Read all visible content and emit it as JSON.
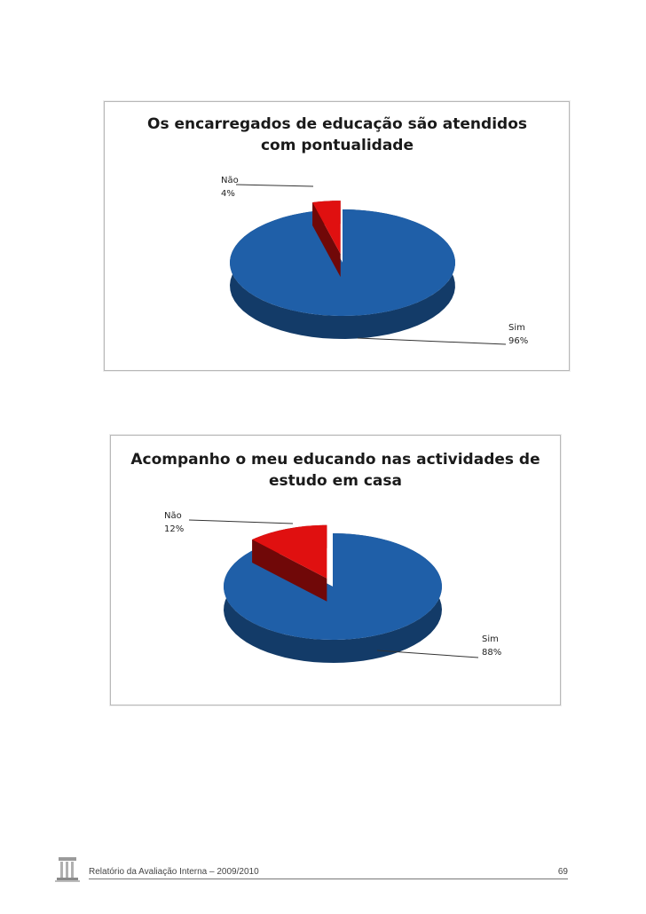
{
  "chart_data": [
    {
      "type": "pie",
      "title_lines": [
        "Os encarregados de educação são atendidos",
        "com pontualidade"
      ],
      "slices": [
        {
          "label": "Não",
          "percent_label": "4%",
          "value": 4
        },
        {
          "label": "Sim",
          "percent_label": "96%",
          "value": 96
        }
      ],
      "colors": {
        "Sim": "#1f5fa8",
        "Não": "#e01010"
      },
      "exploded_slice": "Não",
      "legend": "none"
    },
    {
      "type": "pie",
      "title_lines": [
        "Acompanho o meu educando nas actividades de",
        "estudo em casa"
      ],
      "slices": [
        {
          "label": "Não",
          "percent_label": "12%",
          "value": 12
        },
        {
          "label": "Sim",
          "percent_label": "88%",
          "value": 88
        }
      ],
      "colors": {
        "Sim": "#1f5fa8",
        "Não": "#e01010"
      },
      "exploded_slice": "Não",
      "legend": "none"
    }
  ],
  "footer": {
    "text": "Relatório da Avaliação Interna – 2009/2010",
    "page_number": "69"
  }
}
